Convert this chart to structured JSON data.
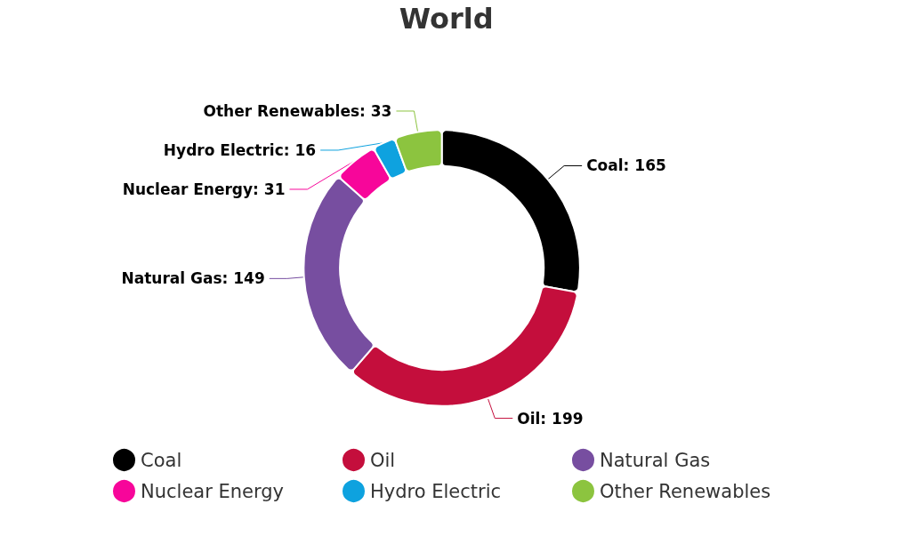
{
  "chart_data": {
    "type": "donut",
    "title": "World",
    "categories": [
      "Coal",
      "Oil",
      "Natural Gas",
      "Nuclear Energy",
      "Hydro Electric",
      "Other Renewables"
    ],
    "values": [
      165,
      199,
      149,
      31,
      16,
      33
    ],
    "value_labels": [
      "Coal: 165",
      "Oil: 199",
      "Natural Gas: 149",
      "Nuclear Energy: 31",
      "Hydro Electric: 16",
      "Other Renewables: 33"
    ],
    "colors": [
      "#000000",
      "#c40e3c",
      "#774ea0",
      "#f7069a",
      "#0ea2df",
      "#8cc43f"
    ],
    "legend": "bottom"
  }
}
